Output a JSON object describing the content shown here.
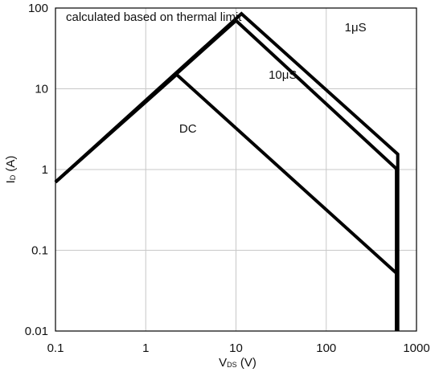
{
  "chart_data": {
    "type": "line",
    "title": "",
    "annotation": "calculated based on thermal limit",
    "x_scale": "log",
    "y_scale": "log",
    "xlim": [
      0.1,
      1000
    ],
    "ylim": [
      0.01,
      100
    ],
    "x_ticks": [
      "0.1",
      "1",
      "10",
      "100",
      "1000"
    ],
    "y_ticks": [
      "0.01",
      "0.1",
      "1",
      "10",
      "100"
    ],
    "xlabel": {
      "main": "V",
      "sub": "DS",
      "unit": " (V)"
    },
    "ylabel": {
      "main": "I",
      "sub": "D",
      "unit": " (A)"
    },
    "grid": true,
    "series": [
      {
        "name": "DC",
        "points": [
          [
            0.1,
            0.7
          ],
          [
            2.2,
            15
          ],
          [
            600,
            0.052
          ],
          [
            600,
            0.01
          ]
        ]
      },
      {
        "name": "10μS",
        "points": [
          [
            0.1,
            0.7
          ],
          [
            10,
            70
          ],
          [
            600,
            1.02
          ],
          [
            600,
            0.01
          ]
        ]
      },
      {
        "name": "1μS",
        "points": [
          [
            0.1,
            0.7
          ],
          [
            11.5,
            85
          ],
          [
            620,
            1.55
          ],
          [
            620,
            0.01
          ]
        ]
      }
    ],
    "series_label_positions": {
      "DC": [
        2.35,
        3.2
      ],
      "10μS": [
        23,
        15
      ],
      "1μS": [
        160,
        58
      ]
    },
    "colors": {
      "line": "#000000",
      "grid": "#c8c8c8",
      "frame": "#000000"
    }
  }
}
